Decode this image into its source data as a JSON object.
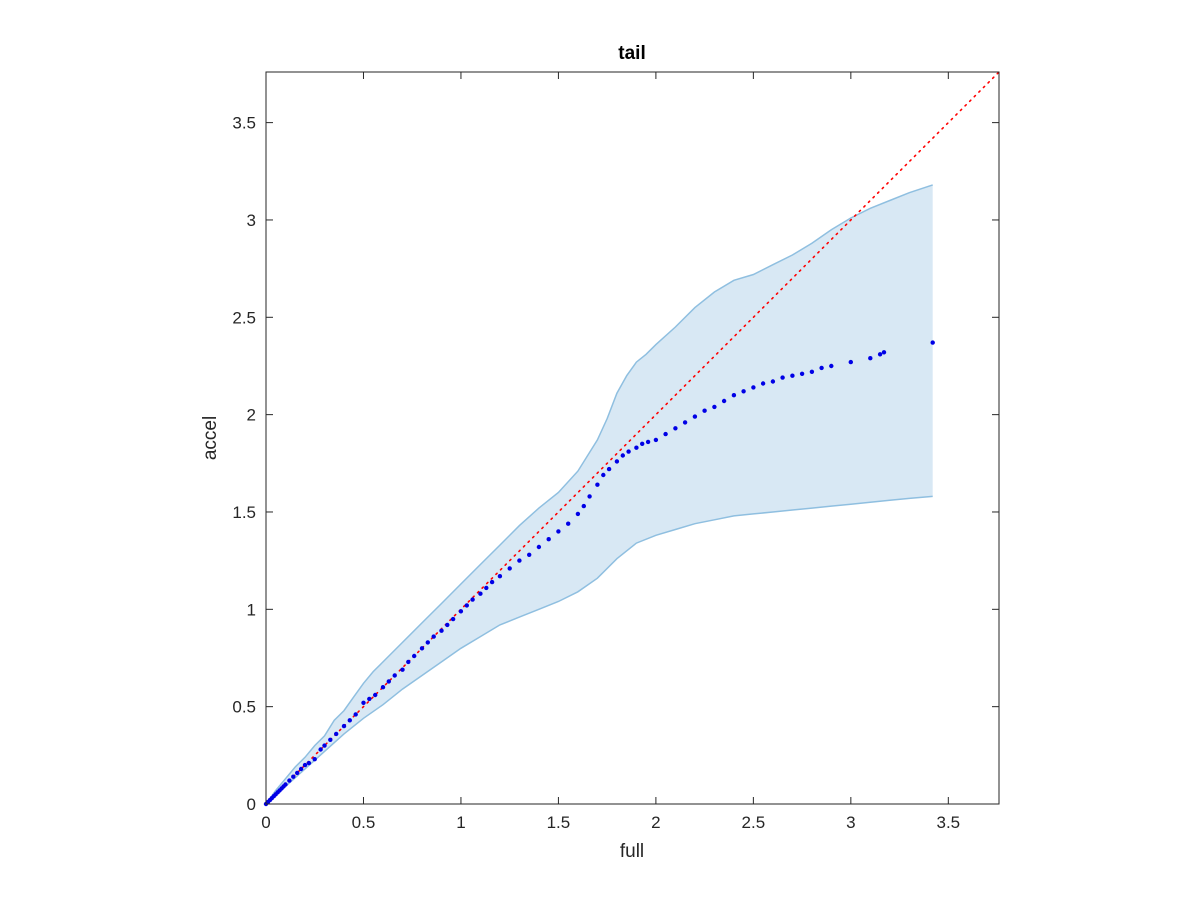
{
  "chart_data": {
    "type": "scatter",
    "title": "tail",
    "xlabel": "full",
    "ylabel": "accel",
    "xlim": [
      0,
      3.76
    ],
    "ylim": [
      0,
      3.76
    ],
    "xticks": [
      0,
      0.5,
      1,
      1.5,
      2,
      2.5,
      3,
      3.5
    ],
    "yticks": [
      0,
      0.5,
      1,
      1.5,
      2,
      2.5,
      3,
      3.5
    ],
    "xtick_labels": [
      "0",
      "0.5",
      "1",
      "1.5",
      "2",
      "2.5",
      "3",
      "3.5"
    ],
    "ytick_labels": [
      "0",
      "0.5",
      "1",
      "1.5",
      "2",
      "2.5",
      "3",
      "3.5"
    ],
    "grid": false,
    "box": true,
    "colors": {
      "points": "#0000e6",
      "band_fill": "#d8e8f4",
      "band_edge": "#8fbfe0",
      "reference": "#ff0000",
      "axes": "#262626"
    },
    "reference_line": {
      "x": [
        0,
        3.76
      ],
      "y": [
        0,
        3.76
      ],
      "style": "dotted"
    },
    "band_upper": {
      "x": [
        0,
        0.05,
        0.1,
        0.15,
        0.2,
        0.25,
        0.3,
        0.35,
        0.4,
        0.45,
        0.5,
        0.55,
        0.6,
        0.7,
        0.8,
        0.9,
        1.0,
        1.1,
        1.2,
        1.3,
        1.4,
        1.5,
        1.6,
        1.7,
        1.75,
        1.8,
        1.85,
        1.9,
        1.95,
        2.0,
        2.1,
        2.2,
        2.3,
        2.4,
        2.5,
        2.6,
        2.7,
        2.8,
        2.9,
        3.0,
        3.1,
        3.2,
        3.3,
        3.42
      ],
      "y": [
        0,
        0.07,
        0.13,
        0.19,
        0.24,
        0.3,
        0.35,
        0.43,
        0.48,
        0.55,
        0.62,
        0.68,
        0.73,
        0.83,
        0.93,
        1.03,
        1.13,
        1.23,
        1.33,
        1.43,
        1.52,
        1.6,
        1.71,
        1.87,
        1.98,
        2.11,
        2.2,
        2.27,
        2.31,
        2.36,
        2.45,
        2.55,
        2.63,
        2.69,
        2.72,
        2.77,
        2.82,
        2.88,
        2.95,
        3.01,
        3.06,
        3.1,
        3.14,
        3.18
      ]
    },
    "band_lower": {
      "x": [
        0,
        0.1,
        0.2,
        0.3,
        0.4,
        0.5,
        0.6,
        0.7,
        0.8,
        0.9,
        1.0,
        1.1,
        1.2,
        1.3,
        1.4,
        1.5,
        1.6,
        1.7,
        1.8,
        1.9,
        2.0,
        2.1,
        2.2,
        2.3,
        2.4,
        2.5,
        2.6,
        2.7,
        2.8,
        2.9,
        3.0,
        3.1,
        3.2,
        3.3,
        3.42
      ],
      "y": [
        0,
        0.09,
        0.18,
        0.27,
        0.36,
        0.44,
        0.51,
        0.59,
        0.66,
        0.73,
        0.8,
        0.86,
        0.92,
        0.96,
        1.0,
        1.04,
        1.09,
        1.16,
        1.26,
        1.34,
        1.38,
        1.41,
        1.44,
        1.46,
        1.48,
        1.49,
        1.5,
        1.51,
        1.52,
        1.53,
        1.54,
        1.55,
        1.56,
        1.57,
        1.58
      ]
    },
    "series": [
      {
        "x": [
          0.0,
          0.01,
          0.02,
          0.03,
          0.04,
          0.05,
          0.06,
          0.07,
          0.08,
          0.09,
          0.1,
          0.12,
          0.14,
          0.16,
          0.18,
          0.2,
          0.22,
          0.25,
          0.28,
          0.3,
          0.33,
          0.36,
          0.4,
          0.43,
          0.46,
          0.5,
          0.53,
          0.56,
          0.6,
          0.63,
          0.66,
          0.7,
          0.73,
          0.76,
          0.8,
          0.83,
          0.86,
          0.9,
          0.93,
          0.96,
          1.0,
          1.03,
          1.06,
          1.1,
          1.13,
          1.16,
          1.2,
          1.25,
          1.3,
          1.35,
          1.4,
          1.45,
          1.5,
          1.55,
          1.6,
          1.63,
          1.66,
          1.7,
          1.73,
          1.76,
          1.8,
          1.83,
          1.86,
          1.9,
          1.93,
          1.96,
          2.0,
          2.05,
          2.1,
          2.15,
          2.2,
          2.25,
          2.3,
          2.35,
          2.4,
          2.45,
          2.5,
          2.55,
          2.6,
          2.65,
          2.7,
          2.75,
          2.8,
          2.85,
          2.9,
          3.0,
          3.1,
          3.15,
          3.17,
          3.42
        ],
        "y": [
          0.0,
          0.01,
          0.02,
          0.03,
          0.04,
          0.05,
          0.06,
          0.07,
          0.08,
          0.09,
          0.1,
          0.12,
          0.14,
          0.16,
          0.18,
          0.2,
          0.21,
          0.23,
          0.28,
          0.3,
          0.33,
          0.36,
          0.4,
          0.43,
          0.46,
          0.52,
          0.54,
          0.56,
          0.6,
          0.63,
          0.66,
          0.69,
          0.73,
          0.76,
          0.8,
          0.83,
          0.86,
          0.89,
          0.92,
          0.95,
          0.99,
          1.02,
          1.05,
          1.08,
          1.11,
          1.14,
          1.17,
          1.21,
          1.25,
          1.28,
          1.32,
          1.36,
          1.4,
          1.44,
          1.49,
          1.53,
          1.58,
          1.64,
          1.69,
          1.72,
          1.76,
          1.79,
          1.81,
          1.83,
          1.85,
          1.86,
          1.87,
          1.9,
          1.93,
          1.96,
          1.99,
          2.02,
          2.04,
          2.07,
          2.1,
          2.12,
          2.14,
          2.16,
          2.17,
          2.19,
          2.2,
          2.21,
          2.22,
          2.24,
          2.25,
          2.27,
          2.29,
          2.31,
          2.32,
          2.37
        ]
      }
    ]
  }
}
